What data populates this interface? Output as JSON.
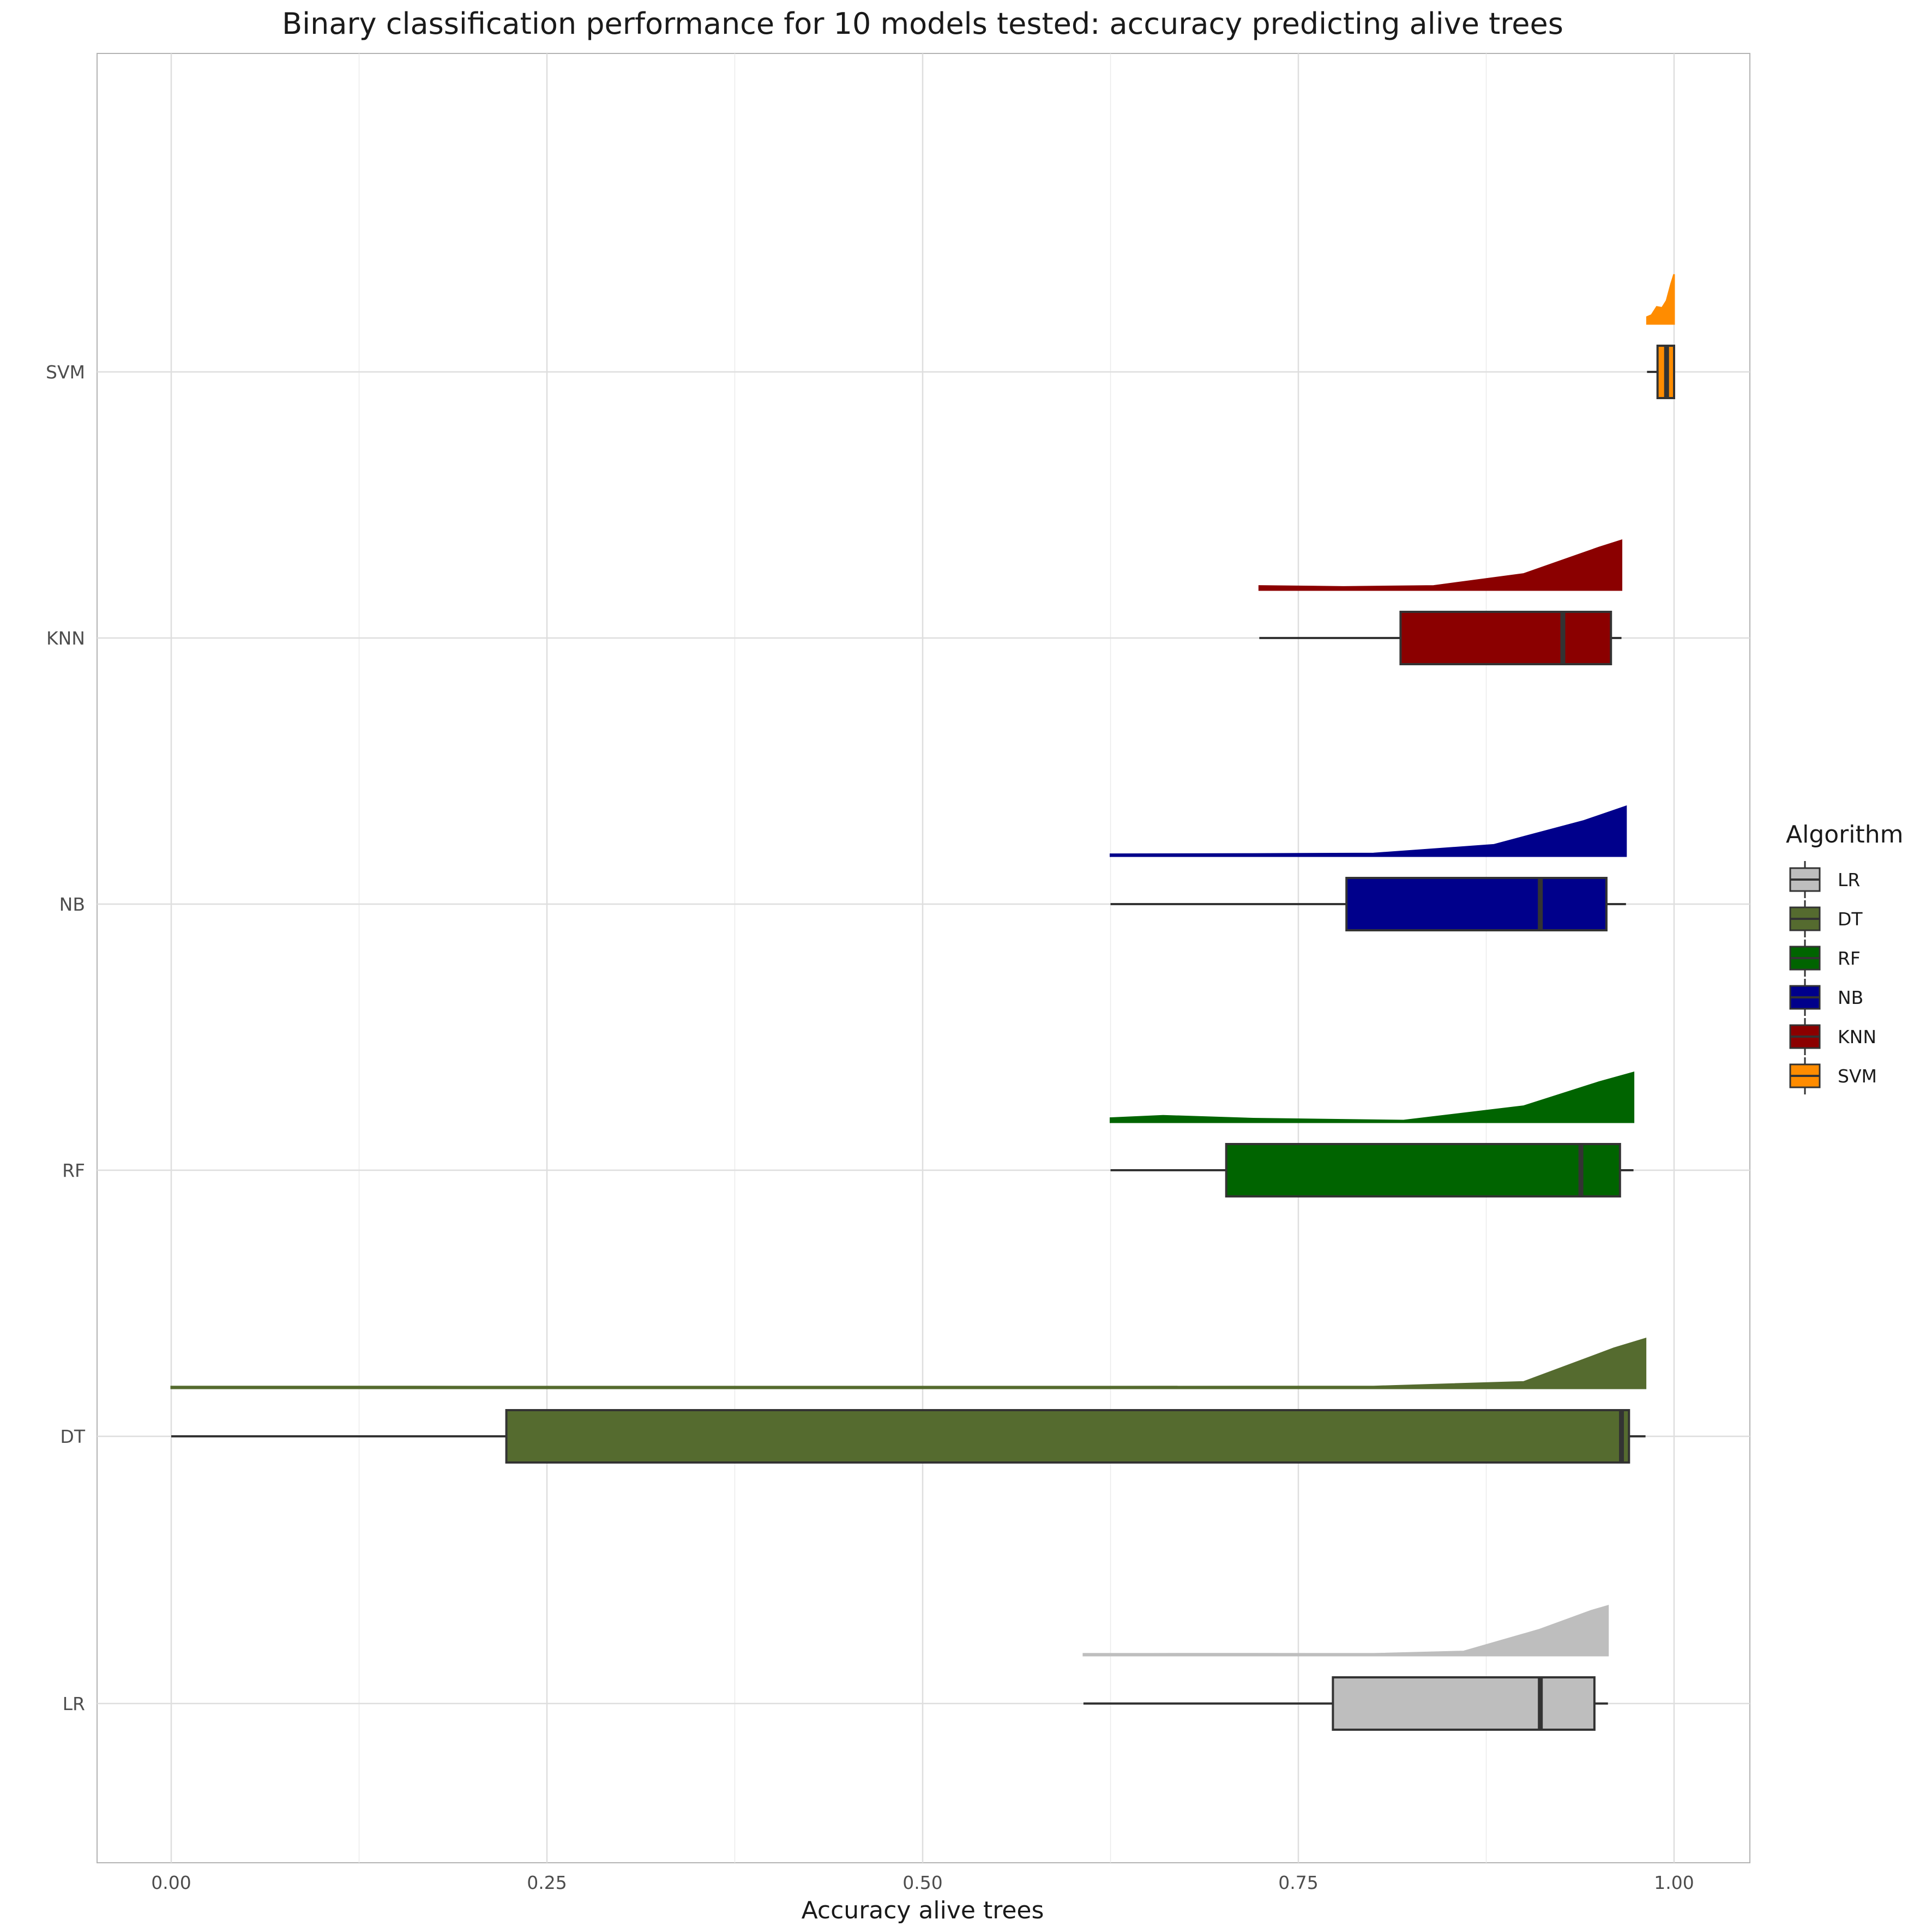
{
  "chart_data": {
    "type": "box",
    "title": "Binary classification performance for 10 models tested: accuracy predicting alive trees",
    "xlabel": "Accuracy alive trees",
    "ylabel": "",
    "xlim": [
      -0.025,
      1.025
    ],
    "x_ticks": [
      0.0,
      0.25,
      0.5,
      0.75,
      1.0
    ],
    "x_tick_labels": [
      "0.00",
      "0.25",
      "0.50",
      "0.75",
      "1.00"
    ],
    "categories": [
      "LR",
      "DT",
      "RF",
      "NB",
      "KNN",
      "SVM"
    ],
    "grid": true,
    "legend": {
      "title": "Algorithm",
      "placement": "right",
      "entries": [
        "LR",
        "DT",
        "RF",
        "NB",
        "KNN",
        "SVM"
      ]
    },
    "series": [
      {
        "name": "LR",
        "color": "#bebebe",
        "min": 0.607,
        "q1": 0.773,
        "median": 0.911,
        "q3": 0.947,
        "max": 0.956,
        "density": [
          [
            0.607,
            0.002
          ],
          [
            0.65,
            0.002
          ],
          [
            0.72,
            0.003
          ],
          [
            0.8,
            0.001
          ],
          [
            0.86,
            0.05
          ],
          [
            0.91,
            0.5
          ],
          [
            0.945,
            0.9
          ],
          [
            0.956,
            1.0
          ]
        ]
      },
      {
        "name": "DT",
        "color": "#556b2f",
        "min": 0.0,
        "q1": 0.223,
        "median": 0.965,
        "q3": 0.97,
        "max": 0.981,
        "density": [
          [
            0.0,
            0.003
          ],
          [
            0.2,
            0.002
          ],
          [
            0.5,
            0.001
          ],
          [
            0.8,
            0.003
          ],
          [
            0.9,
            0.1
          ],
          [
            0.96,
            0.8
          ],
          [
            0.981,
            1.0
          ]
        ]
      },
      {
        "name": "RF",
        "color": "#006400",
        "min": 0.625,
        "q1": 0.702,
        "median": 0.938,
        "q3": 0.964,
        "max": 0.973,
        "density": [
          [
            0.625,
            0.05
          ],
          [
            0.66,
            0.1
          ],
          [
            0.72,
            0.04
          ],
          [
            0.82,
            0.0
          ],
          [
            0.9,
            0.3
          ],
          [
            0.95,
            0.8
          ],
          [
            0.973,
            1.0
          ]
        ]
      },
      {
        "name": "NB",
        "color": "#00008b",
        "min": 0.625,
        "q1": 0.782,
        "median": 0.911,
        "q3": 0.955,
        "max": 0.968,
        "density": [
          [
            0.625,
            0.005
          ],
          [
            0.72,
            0.01
          ],
          [
            0.8,
            0.02
          ],
          [
            0.88,
            0.2
          ],
          [
            0.94,
            0.7
          ],
          [
            0.968,
            1.0
          ]
        ]
      },
      {
        "name": "KNN",
        "color": "#8b0000",
        "min": 0.724,
        "q1": 0.818,
        "median": 0.926,
        "q3": 0.958,
        "max": 0.965,
        "density": [
          [
            0.724,
            0.05
          ],
          [
            0.78,
            0.03
          ],
          [
            0.84,
            0.05
          ],
          [
            0.9,
            0.3
          ],
          [
            0.95,
            0.85
          ],
          [
            0.965,
            1.0
          ]
        ]
      },
      {
        "name": "SVM",
        "color": "#ff8c00",
        "min": 0.982,
        "q1": 0.989,
        "median": 0.995,
        "q3": 1.0,
        "max": 1.0,
        "density": [
          [
            0.982,
            0.11
          ],
          [
            0.985,
            0.15
          ],
          [
            0.9885,
            0.32
          ],
          [
            0.992,
            0.3
          ],
          [
            0.995,
            0.45
          ],
          [
            0.998,
            0.8
          ],
          [
            1.0,
            1.0
          ]
        ]
      }
    ]
  }
}
